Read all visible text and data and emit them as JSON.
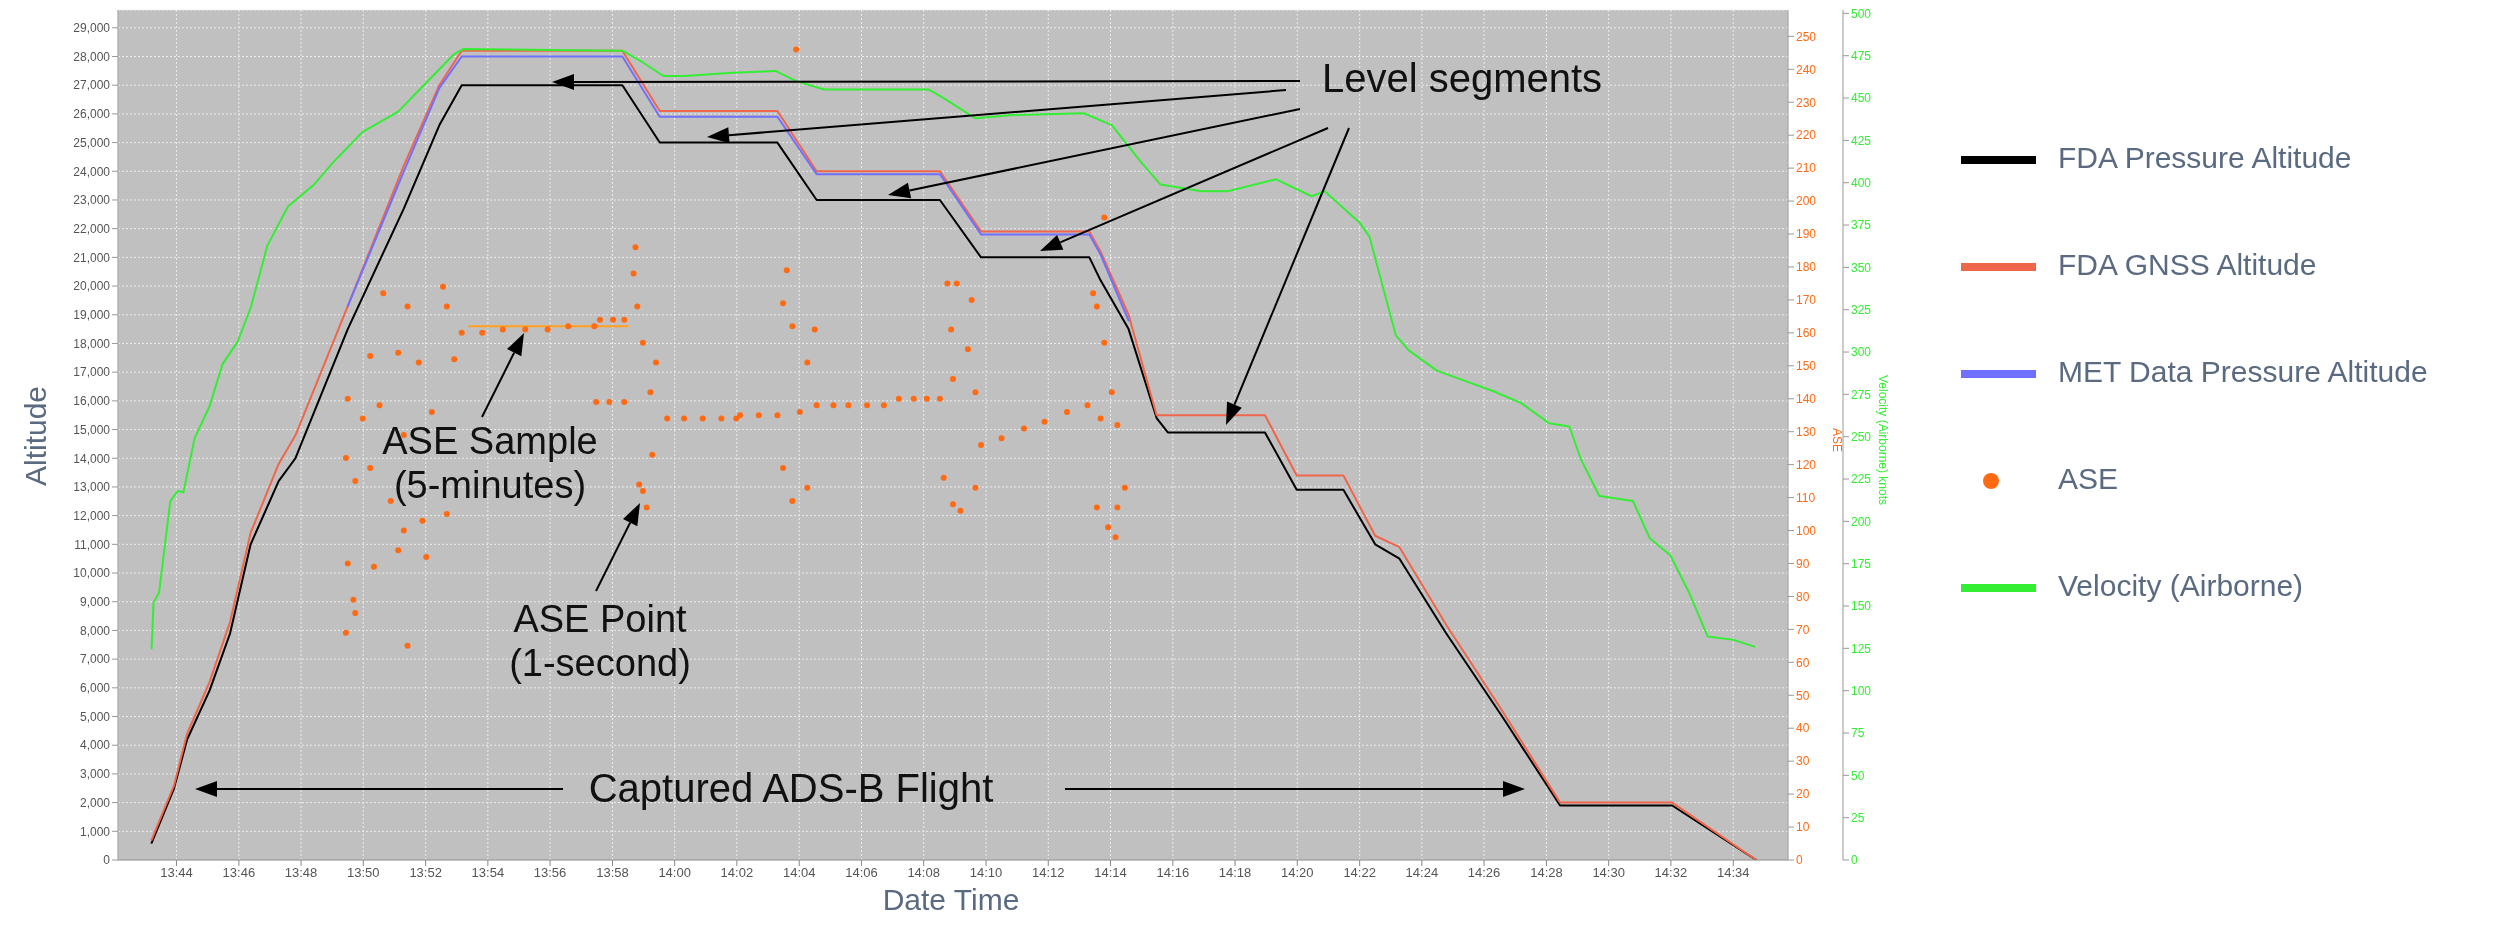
{
  "chart_data": {
    "type": "line",
    "xlabel": "Date Time",
    "ylabel": "Altitude",
    "y2label": "ASE",
    "y3label": "Velocity (Airborne) knots",
    "annotations": [
      "Level segments",
      "ASE Sample\n(5-minutes)",
      "ASE Point\n(1-second)",
      "Captured ADS-B Flight"
    ],
    "xlim": [
      13.702,
      14.596
    ],
    "xticks": [
      {
        "value": 13.7333,
        "label": "13:44"
      },
      {
        "value": 13.7667,
        "label": "13:46"
      },
      {
        "value": 13.8,
        "label": "13:48"
      },
      {
        "value": 13.8333,
        "label": "13:50"
      },
      {
        "value": 13.8667,
        "label": "13:52"
      },
      {
        "value": 13.9,
        "label": "13:54"
      },
      {
        "value": 13.9333,
        "label": "13:56"
      },
      {
        "value": 13.9667,
        "label": "13:58"
      },
      {
        "value": 14,
        "label": "14:00"
      },
      {
        "value": 14.0333,
        "label": "14:02"
      },
      {
        "value": 14.0667,
        "label": "14:04"
      },
      {
        "value": 14.1,
        "label": "14:06"
      },
      {
        "value": 14.1333,
        "label": "14:08"
      },
      {
        "value": 14.1667,
        "label": "14:10"
      },
      {
        "value": 14.2,
        "label": "14:12"
      },
      {
        "value": 14.2333,
        "label": "14:14"
      },
      {
        "value": 14.2667,
        "label": "14:16"
      },
      {
        "value": 14.3,
        "label": "14:18"
      },
      {
        "value": 14.3333,
        "label": "14:20"
      },
      {
        "value": 14.3667,
        "label": "14:22"
      },
      {
        "value": 14.4,
        "label": "14:24"
      },
      {
        "value": 14.4333,
        "label": "14:26"
      },
      {
        "value": 14.4667,
        "label": "14:28"
      },
      {
        "value": 14.5,
        "label": "14:30"
      },
      {
        "value": 14.5333,
        "label": "14:32"
      },
      {
        "value": 14.5667,
        "label": "14:34"
      }
    ],
    "ylim": [
      0,
      29620
    ],
    "yticks": [
      0,
      {
        "value": 1000,
        "label": "1,000"
      },
      {
        "value": 2000,
        "label": "2,000"
      },
      {
        "value": 3000,
        "label": "3,000"
      },
      {
        "value": 4000,
        "label": "4,000"
      },
      {
        "value": 5000,
        "label": "5,000"
      },
      {
        "value": 6000,
        "label": "6,000"
      },
      {
        "value": 7000,
        "label": "7,000"
      },
      {
        "value": 8000,
        "label": "8,000"
      },
      {
        "value": 9000,
        "label": "9,000"
      },
      {
        "value": 10000,
        "label": "10,000"
      },
      {
        "value": 11000,
        "label": "11,000"
      },
      {
        "value": 12000,
        "label": "12,000"
      },
      {
        "value": 13000,
        "label": "13,000"
      },
      {
        "value": 14000,
        "label": "14,000"
      },
      {
        "value": 15000,
        "label": "15,000"
      },
      {
        "value": 16000,
        "label": "16,000"
      },
      {
        "value": 17000,
        "label": "17,000"
      },
      {
        "value": 18000,
        "label": "18,000"
      },
      {
        "value": 19000,
        "label": "19,000"
      },
      {
        "value": 20000,
        "label": "20,000"
      },
      {
        "value": 21000,
        "label": "21,000"
      },
      {
        "value": 22000,
        "label": "22,000"
      },
      {
        "value": 23000,
        "label": "23,000"
      },
      {
        "value": 24000,
        "label": "24,000"
      },
      {
        "value": 25000,
        "label": "25,000"
      },
      {
        "value": 26000,
        "label": "26,000"
      },
      {
        "value": 27000,
        "label": "27,000"
      },
      {
        "value": 28000,
        "label": "28,000"
      },
      {
        "value": 29000,
        "label": "29,000"
      }
    ],
    "y2lim": [
      0,
      258
    ],
    "y2ticks": [
      0,
      10,
      20,
      30,
      40,
      50,
      60,
      70,
      80,
      90,
      100,
      110,
      120,
      130,
      140,
      150,
      160,
      170,
      180,
      190,
      200,
      210,
      220,
      230,
      240,
      250
    ],
    "y3lim": [
      0,
      502
    ],
    "y3ticks": [
      0,
      25,
      50,
      75,
      100,
      125,
      150,
      175,
      200,
      225,
      250,
      275,
      300,
      325,
      350,
      375,
      400,
      425,
      450,
      475,
      500
    ],
    "grid": true,
    "legend": "right",
    "x": [
      13.72,
      13.732,
      13.739,
      13.751,
      13.762,
      13.773,
      13.788,
      13.797,
      13.825,
      13.855,
      13.874,
      13.886,
      13.972,
      13.992,
      14.055,
      14.076,
      14.142,
      14.164,
      14.222,
      14.228,
      14.243,
      14.258,
      14.264,
      14.316,
      14.333,
      14.358,
      14.375,
      14.388,
      14.413,
      14.443,
      14.474,
      14.534,
      14.579
    ],
    "series": [
      {
        "name": "FDA Pressure Altitude",
        "color": "#000000",
        "values": [
          600,
          2500,
          4200,
          5900,
          7900,
          11000,
          13200,
          14000,
          18500,
          22700,
          25600,
          27000,
          27000,
          25000,
          25000,
          23000,
          23000,
          21000,
          21000,
          20200,
          18500,
          15400,
          14900,
          14900,
          12900,
          12900,
          11000,
          10500,
          7900,
          5000,
          1900,
          1900,
          0
        ]
      },
      {
        "name": "FDA GNSS Altitude",
        "color": "#f0664a",
        "values": [
          700,
          2600,
          4400,
          6200,
          8300,
          11400,
          13800,
          14800,
          19300,
          24200,
          27000,
          28200,
          28200,
          26100,
          26100,
          24000,
          24000,
          21900,
          21900,
          21200,
          19000,
          15500,
          15500,
          15500,
          13400,
          13400,
          11300,
          10900,
          8200,
          5200,
          2000,
          2000,
          0
        ]
      },
      {
        "name": "MET Data Pressure Altitude",
        "color": "#7070ff",
        "values": [
          null,
          null,
          null,
          null,
          null,
          null,
          null,
          null,
          19300,
          24000,
          26900,
          28000,
          28000,
          25900,
          25900,
          23900,
          23900,
          21800,
          21800,
          21100,
          18800,
          null,
          null,
          null,
          null,
          null,
          null,
          null,
          null,
          null,
          null,
          null,
          null
        ]
      },
      {
        "name": "ASE",
        "type": "scatter",
        "axis": "y2",
        "color": "#ff6a13",
        "x": [
          13.886,
          13.897,
          13.908,
          13.92,
          13.932,
          13.943,
          13.957,
          13.96,
          13.967,
          13.973,
          13.958,
          13.965,
          13.973,
          13.996,
          14.005,
          14.015,
          14.025,
          14.033,
          14.035,
          14.045,
          14.055,
          14.076,
          14.085,
          14.093,
          14.103,
          14.112,
          14.12,
          14.128,
          14.135,
          14.142,
          14.164,
          14.175,
          14.187,
          14.198,
          14.21,
          14.221,
          13.844,
          13.857,
          13.876,
          13.878,
          13.837,
          13.852,
          13.863,
          13.882,
          13.825,
          13.833,
          13.842,
          13.855,
          13.87,
          13.979,
          13.978,
          13.98,
          13.983,
          13.99,
          13.987,
          14.06,
          14.058,
          14.063,
          14.075,
          14.071,
          14.067,
          14.146,
          14.151,
          14.159,
          14.148,
          14.157,
          14.149,
          14.161,
          14.23,
          14.224,
          14.226,
          14.23,
          14.234,
          14.228,
          14.237,
          14.065,
          13.824,
          13.829,
          13.837,
          13.848,
          13.855,
          13.865,
          13.825,
          13.839,
          13.852,
          13.867,
          13.828,
          13.829,
          13.824,
          13.857,
          13.878,
          13.983,
          13.985,
          13.981,
          13.988,
          14.058,
          14.071,
          14.063,
          14.144,
          14.149,
          14.153,
          14.161,
          14.226,
          14.232,
          14.236,
          14.237,
          14.241
        ],
        "values": [
          160,
          160,
          161,
          161,
          161,
          162,
          162,
          164,
          164,
          164,
          139,
          139,
          139,
          134,
          134,
          134,
          134,
          134,
          135,
          135,
          135,
          138,
          138,
          138,
          138,
          138,
          140,
          140,
          140,
          140,
          126,
          128,
          131,
          133,
          136,
          138,
          172,
          168,
          174,
          168,
          153,
          154,
          151,
          152,
          140,
          134,
          138,
          129,
          136,
          186,
          178,
          168,
          157,
          151,
          142,
          179,
          169,
          162,
          161,
          151,
          136,
          175,
          175,
          170,
          161,
          155,
          146,
          142,
          195,
          172,
          168,
          157,
          142,
          134,
          132,
          246,
          122,
          115,
          119,
          109,
          100,
          103,
          90,
          89,
          94,
          92,
          79,
          75,
          69,
          65,
          105,
          112,
          107,
          114,
          123,
          119,
          113,
          109,
          116,
          108,
          106,
          113,
          107,
          101,
          98,
          107,
          113
        ]
      },
      {
        "name": "Velocity (Airborne)",
        "axis": "y3",
        "color": "#33ee33",
        "x": [
          13.72,
          13.721,
          13.724,
          13.73,
          13.734,
          13.737,
          13.743,
          13.751,
          13.758,
          13.766,
          13.773,
          13.782,
          13.793,
          13.807,
          13.818,
          13.833,
          13.852,
          13.867,
          13.882,
          13.887,
          13.972,
          13.983,
          13.994,
          14.005,
          14.031,
          14.054,
          14.065,
          14.08,
          14.106,
          14.136,
          14.144,
          14.161,
          14.181,
          14.219,
          14.234,
          14.249,
          14.26,
          14.282,
          14.296,
          14.322,
          14.341,
          14.348,
          14.367,
          14.372,
          14.386,
          14.393,
          14.408,
          14.423,
          14.438,
          14.453,
          14.468,
          14.479,
          14.485,
          14.495,
          14.513,
          14.522,
          14.533,
          14.543,
          14.553,
          14.567,
          14.578
        ],
        "values": [
          125,
          152,
          158,
          212,
          218,
          217,
          249,
          268,
          293,
          306,
          326,
          363,
          386,
          399,
          413,
          430,
          442,
          459,
          476,
          479,
          478,
          471,
          463,
          463,
          465,
          466,
          460,
          455,
          455,
          455,
          450,
          438,
          440,
          441,
          434,
          413,
          399,
          395,
          395,
          402,
          392,
          395,
          376,
          368,
          310,
          301,
          289,
          283,
          277,
          270,
          258,
          256,
          237,
          215,
          212,
          190,
          180,
          158,
          132,
          130,
          126
        ]
      },
      {
        "axis": "y2",
        "color": "#ffa020",
        "x": [
          13.89,
          13.975
        ],
        "values": [
          162,
          162
        ]
      }
    ]
  }
}
